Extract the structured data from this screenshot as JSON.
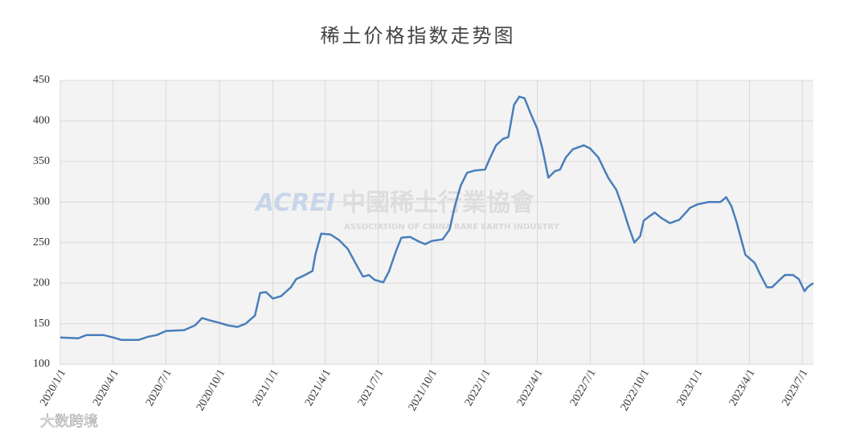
{
  "chart_data": {
    "type": "line",
    "title": "稀土价格指数走势图",
    "annotations": [
      "ACREI",
      "中國稀土行業協會",
      "ASSOCIATION OF CHINA RARE EARTH INDUSTRY",
      "大数跨境"
    ],
    "x": [
      "2020/1/1",
      "2020/2/1",
      "2020/2/15",
      "2020/3/15",
      "2020/4/1",
      "2020/4/15",
      "2020/5/15",
      "2020/6/1",
      "2020/6/15",
      "2020/7/1",
      "2020/8/1",
      "2020/8/20",
      "2020/9/1",
      "2020/9/15",
      "2020/10/1",
      "2020/10/15",
      "2020/11/1",
      "2020/11/15",
      "2020/12/1",
      "2020/12/10",
      "2020/12/20",
      "2021/1/1",
      "2021/1/15",
      "2021/2/1",
      "2021/2/10",
      "2021/2/25",
      "2021/3/10",
      "2021/3/15",
      "2021/3/25",
      "2021/4/10",
      "2021/4/25",
      "2021/5/10",
      "2021/5/25",
      "2021/6/5",
      "2021/6/15",
      "2021/6/25",
      "2021/7/10",
      "2021/7/20",
      "2021/8/1",
      "2021/8/10",
      "2021/8/25",
      "2021/9/10",
      "2021/9/20",
      "2021/10/1",
      "2021/10/20",
      "2021/11/1",
      "2021/11/10",
      "2021/11/20",
      "2021/12/1",
      "2021/12/15",
      "2022/1/1",
      "2022/1/10",
      "2022/1/20",
      "2022/2/1",
      "2022/2/10",
      "2022/2/20",
      "2022/3/1",
      "2022/3/10",
      "2022/3/20",
      "2022/4/1",
      "2022/4/10",
      "2022/4/20",
      "2022/5/1",
      "2022/5/10",
      "2022/5/20",
      "2022/6/1",
      "2022/6/20",
      "2022/7/1",
      "2022/7/15",
      "2022/8/1",
      "2022/8/15",
      "2022/8/25",
      "2022/9/5",
      "2022/9/15",
      "2022/9/25",
      "2022/10/1",
      "2022/10/10",
      "2022/10/20",
      "2022/11/1",
      "2022/11/15",
      "2022/12/1",
      "2022/12/10",
      "2022/12/20",
      "2023/1/1",
      "2023/1/20",
      "2023/2/10",
      "2023/2/20",
      "2023/3/1",
      "2023/3/10",
      "2023/3/25",
      "2023/4/10",
      "2023/4/20",
      "2023/5/1",
      "2023/5/10",
      "2023/5/20",
      "2023/6/1",
      "2023/6/15",
      "2023/6/25",
      "2023/7/5",
      "2023/7/10",
      "2023/7/20"
    ],
    "series": [
      {
        "color": "#4a7ebb",
        "values": [
          133,
          132,
          136,
          136,
          133,
          130,
          130,
          134,
          136,
          141,
          142,
          148,
          157,
          154,
          151,
          148,
          146,
          150,
          160,
          188,
          189,
          181,
          184,
          195,
          205,
          210,
          215,
          235,
          261,
          260,
          253,
          242,
          222,
          208,
          210,
          204,
          201,
          215,
          240,
          256,
          257,
          251,
          248,
          252,
          254,
          266,
          295,
          320,
          336,
          339,
          340,
          355,
          370,
          378,
          380,
          420,
          430,
          428,
          410,
          390,
          365,
          330,
          338,
          340,
          355,
          365,
          370,
          366,
          355,
          330,
          315,
          295,
          270,
          250,
          258,
          277,
          282,
          287,
          280,
          274,
          278,
          285,
          293,
          297,
          300,
          300,
          306,
          295,
          275,
          235,
          225,
          210,
          195,
          195,
          202,
          210,
          210,
          205,
          190,
          195,
          200
        ]
      }
    ],
    "xlim": [
      "2020/1/1",
      "2023/7/20"
    ],
    "xticks": [
      "2020/1/1",
      "2020/4/1",
      "2020/7/1",
      "2020/10/1",
      "2021/1/1",
      "2021/4/1",
      "2021/7/1",
      "2021/10/1",
      "2022/1/1",
      "2022/4/1",
      "2022/7/1",
      "2022/10/1",
      "2023/1/1",
      "2023/4/1",
      "2023/7/1"
    ],
    "ylim": [
      100,
      450
    ],
    "yticks": [
      100,
      150,
      200,
      250,
      300,
      350,
      400,
      450
    ],
    "grid": true
  }
}
